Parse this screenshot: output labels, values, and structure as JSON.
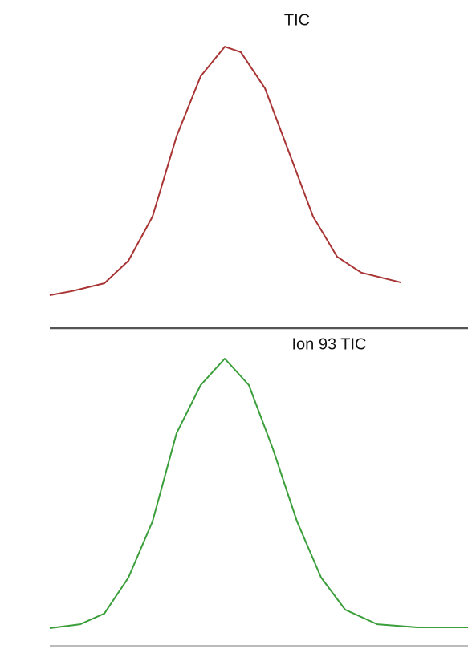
{
  "chart_data": [
    {
      "type": "line",
      "title": "TIC",
      "x": [
        0,
        28,
        68,
        98,
        128,
        158,
        188,
        218,
        238,
        268,
        298,
        328,
        358,
        388,
        438
      ],
      "series": [
        {
          "color": "#a83434",
          "values": [
            3.7,
            5.3,
            8.3,
            17.0,
            34.0,
            64.9,
            88.0,
            99.4,
            97.3,
            83.4,
            58.7,
            34.0,
            18.5,
            12.4,
            8.6
          ]
        }
      ],
      "xlim": [
        0,
        521
      ],
      "ylim": [
        0,
        105
      ]
    },
    {
      "type": "line",
      "title": "Ion 93 TIC",
      "x": [
        0,
        38,
        68,
        98,
        128,
        158,
        188,
        218,
        248,
        278,
        308,
        338,
        368,
        408,
        458,
        521
      ],
      "series": [
        {
          "color": "#3a9e3a",
          "values": [
            3.1,
            4.6,
            8.7,
            22.6,
            44.2,
            78.2,
            96.7,
            106.9,
            96.7,
            72.1,
            44.2,
            22.6,
            10.2,
            4.6,
            3.4,
            3.4
          ]
        }
      ],
      "xlim": [
        0,
        521
      ],
      "ylim": [
        0,
        110
      ]
    }
  ]
}
